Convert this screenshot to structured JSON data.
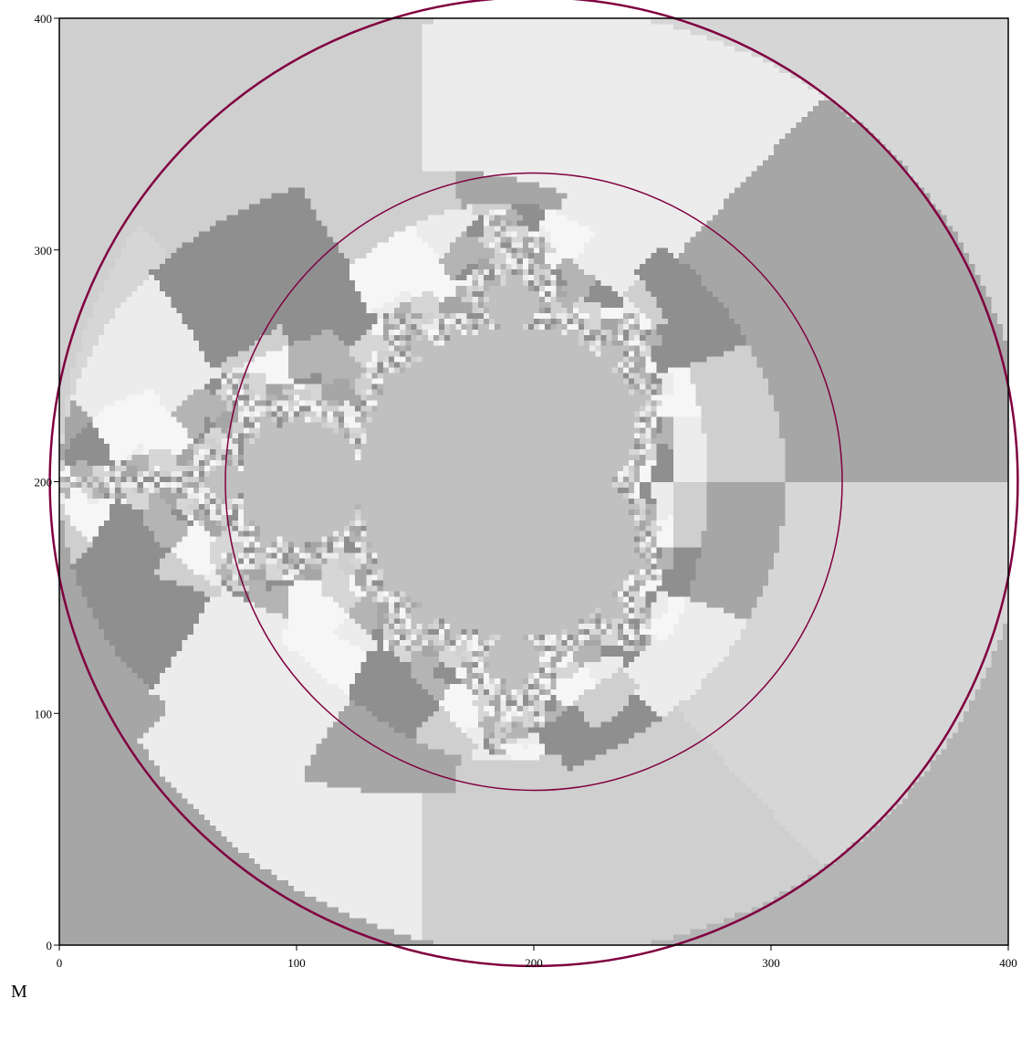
{
  "chart_data": {
    "type": "contour",
    "caption": "M",
    "xlim": [
      0,
      400
    ],
    "ylim": [
      0,
      400
    ],
    "xticks": [
      0,
      100,
      200,
      300,
      400
    ],
    "yticks": [
      0,
      100,
      200,
      300,
      400
    ],
    "color": "#800040"
  }
}
